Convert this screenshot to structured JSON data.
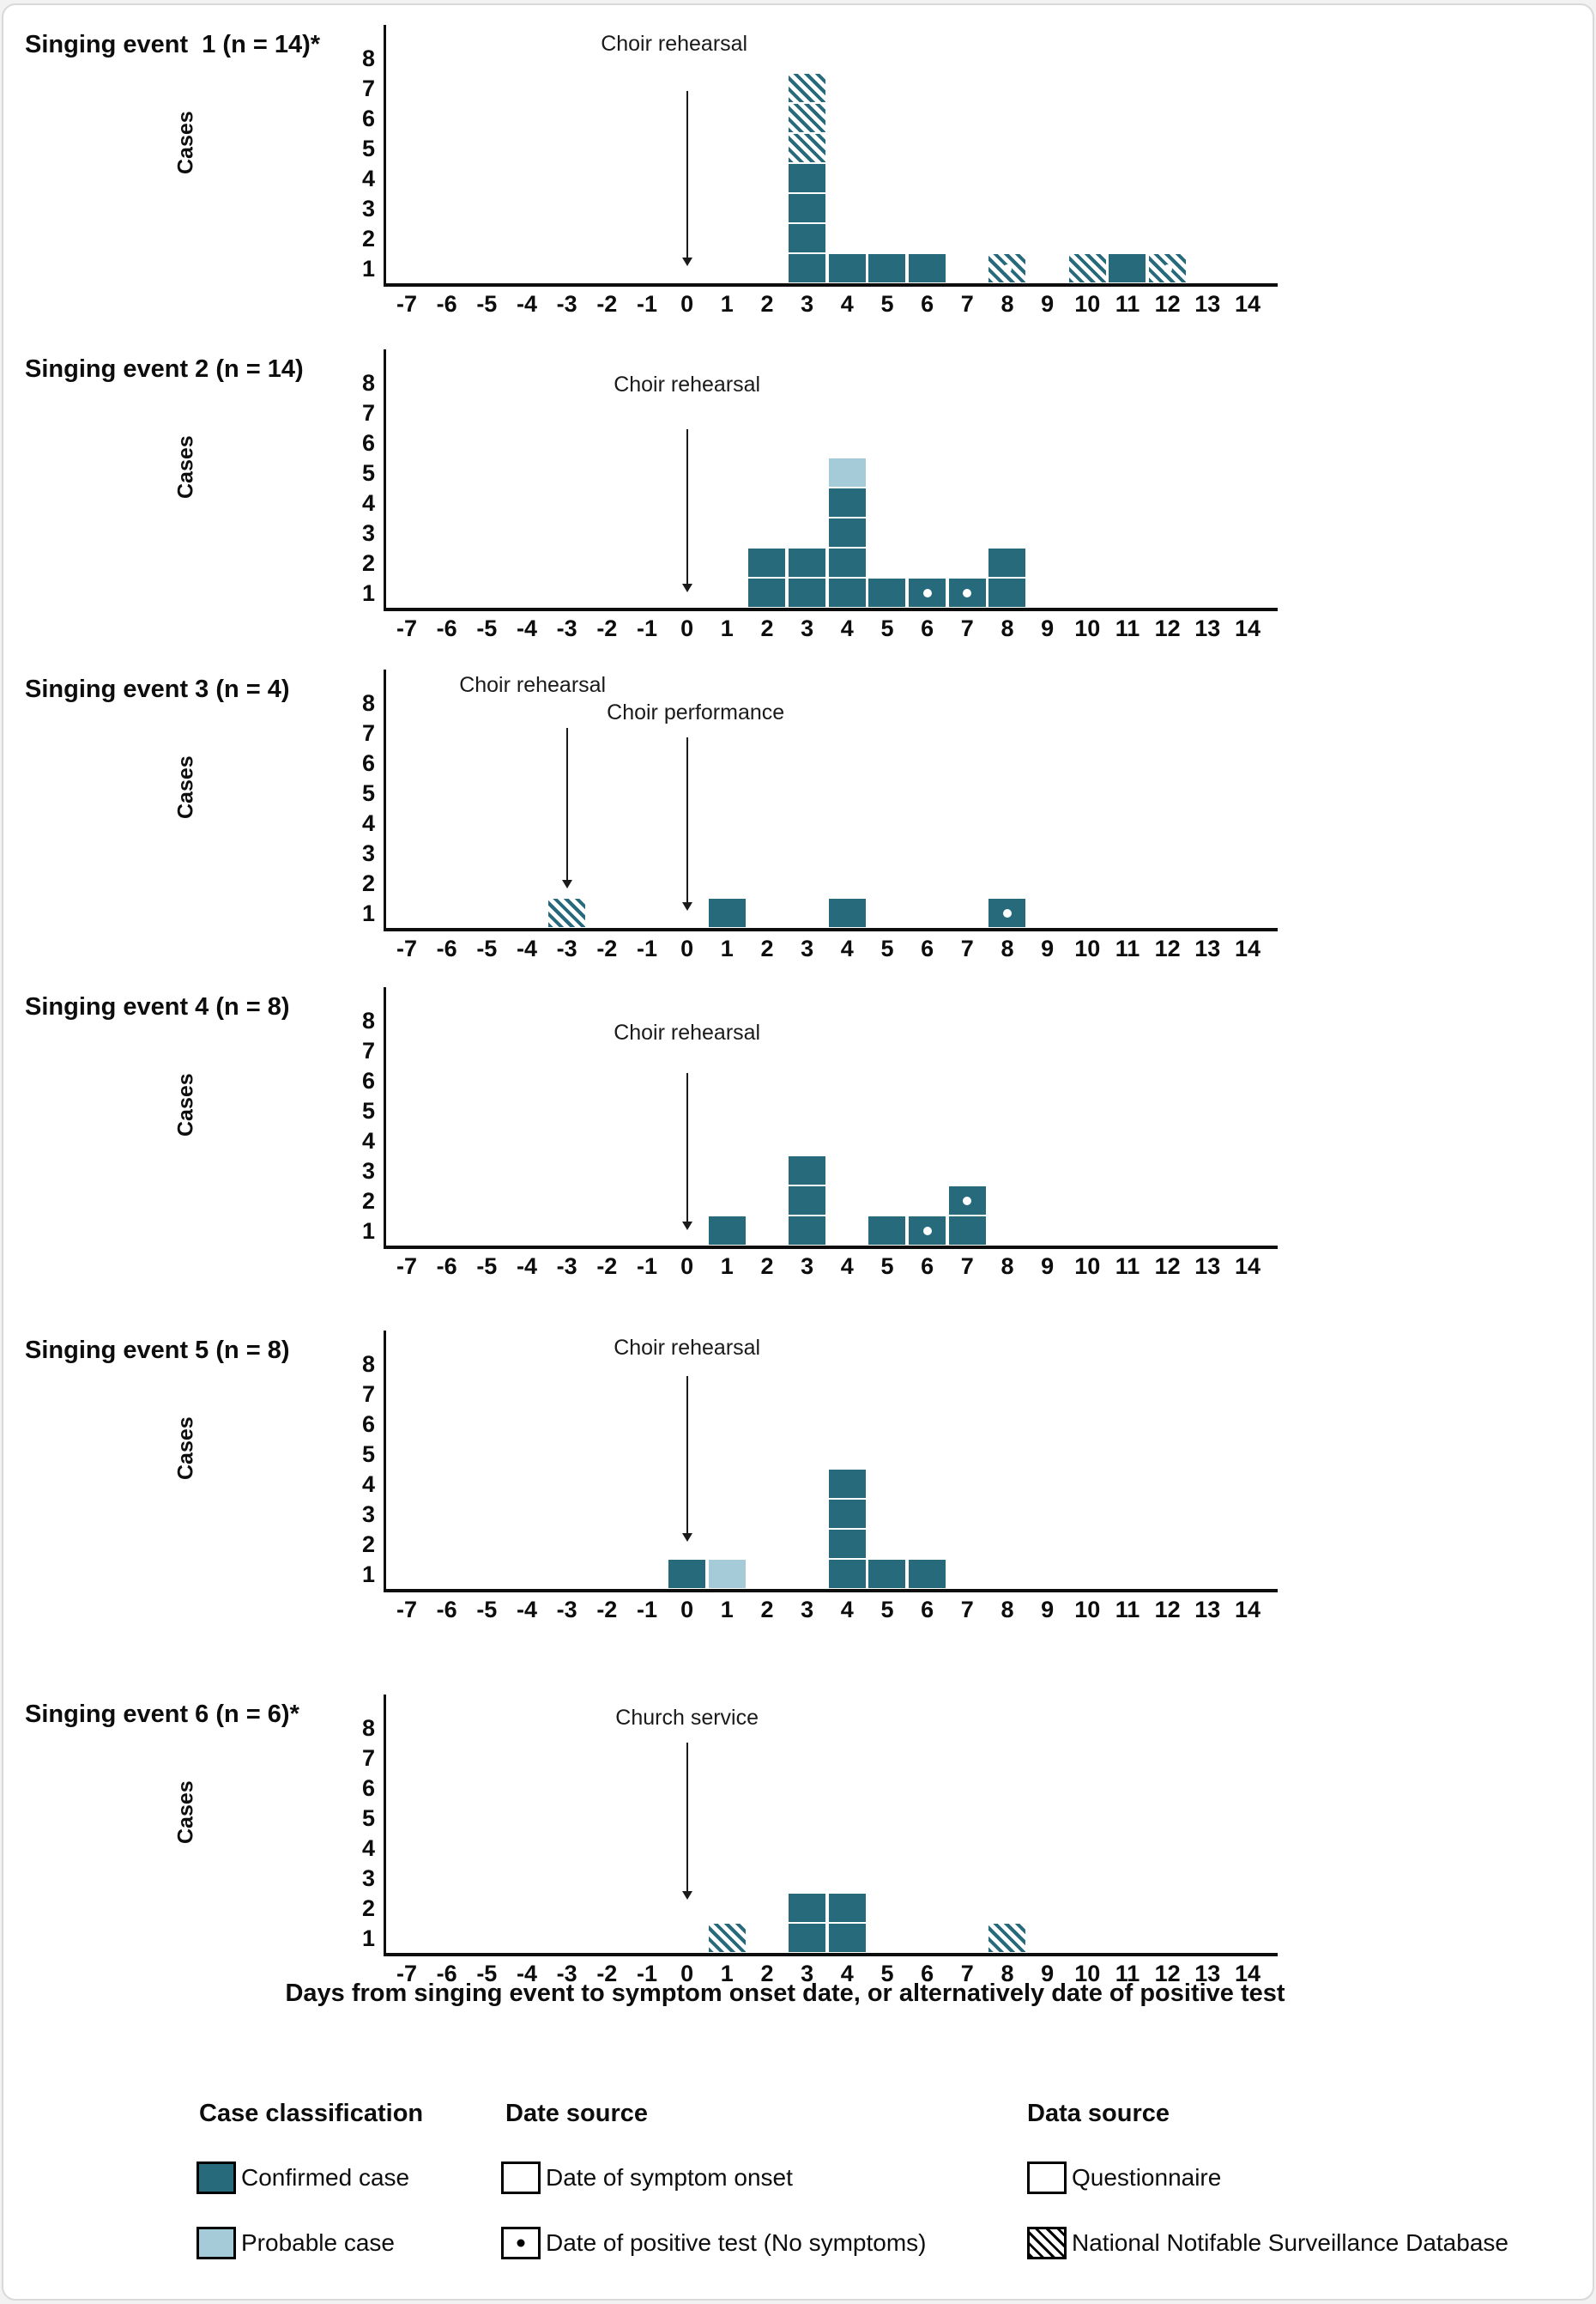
{
  "figure": {
    "xlabel": "Days from singing event to symptom onset date, or alternatively date of positive test",
    "ylabel": "Cases"
  },
  "colors": {
    "confirmed": "#266a7c",
    "probable": "#a4cbd7",
    "axis": "#0d0d0d"
  },
  "chart_data": [
    {
      "type": "bar",
      "title": "Singing event  1 (n = 14)*",
      "ylabel": "Cases",
      "xlim": [
        -7,
        14
      ],
      "ylim": [
        0,
        8
      ],
      "y_ticks": [
        1,
        2,
        3,
        4,
        5,
        6,
        7,
        8
      ],
      "annotations": [
        {
          "label": "Choir rehearsal",
          "x": 0,
          "label_y": 8.45,
          "label_dx": -15,
          "arrow_top": 6.9,
          "arrow_bottom": 1.1
        }
      ],
      "columns": [
        {
          "day": 3,
          "cases": [
            {
              "t": "confirmed"
            },
            {
              "t": "confirmed"
            },
            {
              "t": "confirmed"
            },
            {
              "t": "confirmed"
            },
            {
              "t": "nnsd"
            },
            {
              "t": "nnsd"
            },
            {
              "t": "nnsd"
            }
          ]
        },
        {
          "day": 4,
          "cases": [
            {
              "t": "confirmed"
            }
          ]
        },
        {
          "day": 5,
          "cases": [
            {
              "t": "confirmed"
            }
          ]
        },
        {
          "day": 6,
          "cases": [
            {
              "t": "confirmed"
            }
          ]
        },
        {
          "day": 8,
          "cases": [
            {
              "t": "nnsd",
              "dot": true
            }
          ]
        },
        {
          "day": 10,
          "cases": [
            {
              "t": "nnsd"
            }
          ]
        },
        {
          "day": 11,
          "cases": [
            {
              "t": "confirmed"
            }
          ]
        },
        {
          "day": 12,
          "cases": [
            {
              "t": "nnsd",
              "dot": true
            }
          ]
        }
      ]
    },
    {
      "type": "bar",
      "title": "Singing event 2 (n = 14)",
      "ylabel": "Cases",
      "xlim": [
        -7,
        14
      ],
      "ylim": [
        0,
        8
      ],
      "y_ticks": [
        1,
        2,
        3,
        4,
        5,
        6,
        7,
        8
      ],
      "annotations": [
        {
          "label": "Choir rehearsal",
          "x": 0,
          "label_y": 7.9,
          "label_dx": 0,
          "arrow_top": 6.45,
          "arrow_bottom": 1.05
        }
      ],
      "columns": [
        {
          "day": 2,
          "cases": [
            {
              "t": "confirmed"
            },
            {
              "t": "confirmed"
            }
          ]
        },
        {
          "day": 3,
          "cases": [
            {
              "t": "confirmed"
            },
            {
              "t": "confirmed"
            }
          ]
        },
        {
          "day": 4,
          "cases": [
            {
              "t": "confirmed"
            },
            {
              "t": "confirmed"
            },
            {
              "t": "confirmed"
            },
            {
              "t": "confirmed"
            },
            {
              "t": "probable"
            }
          ]
        },
        {
          "day": 5,
          "cases": [
            {
              "t": "confirmed"
            }
          ]
        },
        {
          "day": 6,
          "cases": [
            {
              "t": "confirmed",
              "dot": true
            }
          ]
        },
        {
          "day": 7,
          "cases": [
            {
              "t": "confirmed",
              "dot": true
            }
          ]
        },
        {
          "day": 8,
          "cases": [
            {
              "t": "confirmed"
            },
            {
              "t": "confirmed"
            }
          ]
        }
      ]
    },
    {
      "type": "bar",
      "title": "Singing event 3 (n = 4)",
      "ylabel": "Cases",
      "xlim": [
        -7,
        14
      ],
      "ylim": [
        0,
        8
      ],
      "y_ticks": [
        1,
        2,
        3,
        4,
        5,
        6,
        7,
        8
      ],
      "annotations": [
        {
          "label": "Choir rehearsal",
          "x": -3,
          "label_y": 8.55,
          "label_dx": -40,
          "arrow_top": 7.15,
          "arrow_bottom": 1.85
        },
        {
          "label": "Choir performance",
          "x": 0,
          "label_y": 7.65,
          "label_dx": 10,
          "arrow_top": 6.85,
          "arrow_bottom": 1.1
        }
      ],
      "columns": [
        {
          "day": -3,
          "cases": [
            {
              "t": "nnsd"
            }
          ]
        },
        {
          "day": 1,
          "cases": [
            {
              "t": "confirmed"
            }
          ]
        },
        {
          "day": 4,
          "cases": [
            {
              "t": "confirmed"
            }
          ]
        },
        {
          "day": 8,
          "cases": [
            {
              "t": "confirmed",
              "dot": true
            }
          ]
        }
      ]
    },
    {
      "type": "bar",
      "title": "Singing event 4 (n = 8)",
      "ylabel": "Cases",
      "xlim": [
        -7,
        14
      ],
      "ylim": [
        0,
        8
      ],
      "y_ticks": [
        1,
        2,
        3,
        4,
        5,
        6,
        7,
        8
      ],
      "annotations": [
        {
          "label": "Choir rehearsal",
          "x": 0,
          "label_y": 7.55,
          "label_dx": 0,
          "arrow_top": 6.25,
          "arrow_bottom": 1.05
        }
      ],
      "columns": [
        {
          "day": 1,
          "cases": [
            {
              "t": "confirmed"
            }
          ]
        },
        {
          "day": 3,
          "cases": [
            {
              "t": "confirmed"
            },
            {
              "t": "confirmed"
            },
            {
              "t": "confirmed"
            }
          ]
        },
        {
          "day": 5,
          "cases": [
            {
              "t": "confirmed"
            }
          ]
        },
        {
          "day": 6,
          "cases": [
            {
              "t": "confirmed",
              "dot": true
            }
          ]
        },
        {
          "day": 7,
          "cases": [
            {
              "t": "confirmed"
            },
            {
              "t": "confirmed",
              "dot": true
            }
          ]
        }
      ]
    },
    {
      "type": "bar",
      "title": "Singing event 5 (n = 8)",
      "ylabel": "Cases",
      "xlim": [
        -7,
        14
      ],
      "ylim": [
        0,
        8
      ],
      "y_ticks": [
        1,
        2,
        3,
        4,
        5,
        6,
        7,
        8
      ],
      "annotations": [
        {
          "label": "Choir rehearsal",
          "x": 0,
          "label_y": 8.5,
          "label_dx": 0,
          "arrow_top": 7.6,
          "arrow_bottom": 2.1
        }
      ],
      "columns": [
        {
          "day": 0,
          "cases": [
            {
              "t": "confirmed"
            }
          ]
        },
        {
          "day": 1,
          "cases": [
            {
              "t": "probable"
            }
          ]
        },
        {
          "day": 4,
          "cases": [
            {
              "t": "confirmed"
            },
            {
              "t": "confirmed"
            },
            {
              "t": "confirmed"
            },
            {
              "t": "confirmed"
            }
          ]
        },
        {
          "day": 5,
          "cases": [
            {
              "t": "confirmed"
            }
          ]
        },
        {
          "day": 6,
          "cases": [
            {
              "t": "confirmed"
            }
          ]
        }
      ]
    },
    {
      "type": "bar",
      "title": "Singing event 6 (n = 6)*",
      "ylabel": "Cases",
      "xlim": [
        -7,
        14
      ],
      "ylim": [
        0,
        8
      ],
      "y_ticks": [
        1,
        2,
        3,
        4,
        5,
        6,
        7,
        8
      ],
      "annotations": [
        {
          "label": "Church service",
          "x": 0,
          "label_y": 8.3,
          "label_dx": 0,
          "arrow_top": 7.5,
          "arrow_bottom": 2.3
        }
      ],
      "columns": [
        {
          "day": 1,
          "cases": [
            {
              "t": "nnsd"
            }
          ]
        },
        {
          "day": 3,
          "cases": [
            {
              "t": "confirmed"
            },
            {
              "t": "confirmed"
            }
          ]
        },
        {
          "day": 4,
          "cases": [
            {
              "t": "confirmed"
            },
            {
              "t": "confirmed"
            }
          ]
        },
        {
          "day": 8,
          "cases": [
            {
              "t": "nnsd"
            }
          ]
        }
      ]
    }
  ],
  "legend": {
    "groups": [
      {
        "heading": "Case classification",
        "items": [
          {
            "swatch": "confirmed",
            "label": "Confirmed case"
          },
          {
            "swatch": "probable",
            "label": "Probable case"
          }
        ]
      },
      {
        "heading": "Date source",
        "items": [
          {
            "swatch": "plain",
            "label": "Date of symptom onset"
          },
          {
            "swatch": "dot",
            "label": "Date of positive test (No symptoms)"
          }
        ]
      },
      {
        "heading": "Data source",
        "items": [
          {
            "swatch": "plain",
            "label": "Questionnaire"
          },
          {
            "swatch": "hatchblack",
            "label": "National Notifable Surveillance Database"
          }
        ]
      }
    ]
  }
}
